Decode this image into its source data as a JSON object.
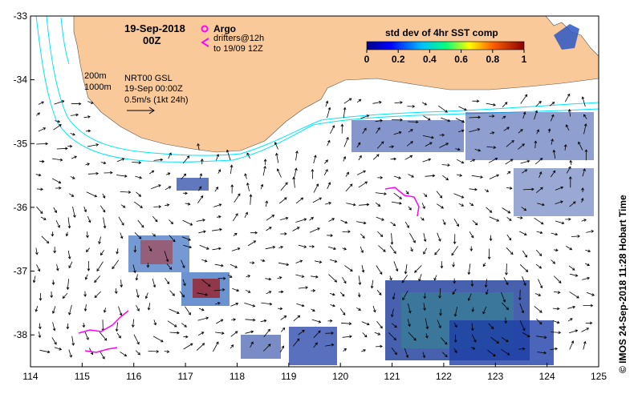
{
  "header": {
    "date": "19-Sep-2018",
    "time": "00Z"
  },
  "legend": {
    "argo_label": "Argo",
    "drifters_line1": "drifters@12h",
    "drifters_line2": "to 19/09 12Z",
    "argo_color": "#ff00ff",
    "drifter_color": "#ff00ff"
  },
  "isobaths": {
    "label_200": "200m",
    "label_1000": "1000m",
    "color": "#00e5ff"
  },
  "currents": {
    "line1": "NRT00 GSL",
    "line2": "19-Sep 00:00Z",
    "line3": "0.5m/s (1kt 24h)"
  },
  "colorbar": {
    "title": "std dev of 4hr SST comp",
    "ticks": [
      "0",
      "0.2",
      "0.4",
      "0.6",
      "0.8",
      "1"
    ],
    "min": 0,
    "max": 1
  },
  "axes": {
    "x_ticks": [
      "114",
      "115",
      "116",
      "117",
      "118",
      "119",
      "120",
      "121",
      "122",
      "123",
      "124",
      "125"
    ],
    "y_ticks": [
      "-33",
      "-34",
      "-35",
      "-36",
      "-37",
      "-38"
    ],
    "lon_range": [
      114,
      125
    ],
    "lat_range": [
      -38.5,
      -33
    ]
  },
  "credit": "©  IMOS 24-Sep-2018 11:28 Hobart Time",
  "colors": {
    "land": "#f9c99a",
    "ocean": "#ffffff",
    "sst_low": "#00008b",
    "sst_high": "#8b0000"
  }
}
